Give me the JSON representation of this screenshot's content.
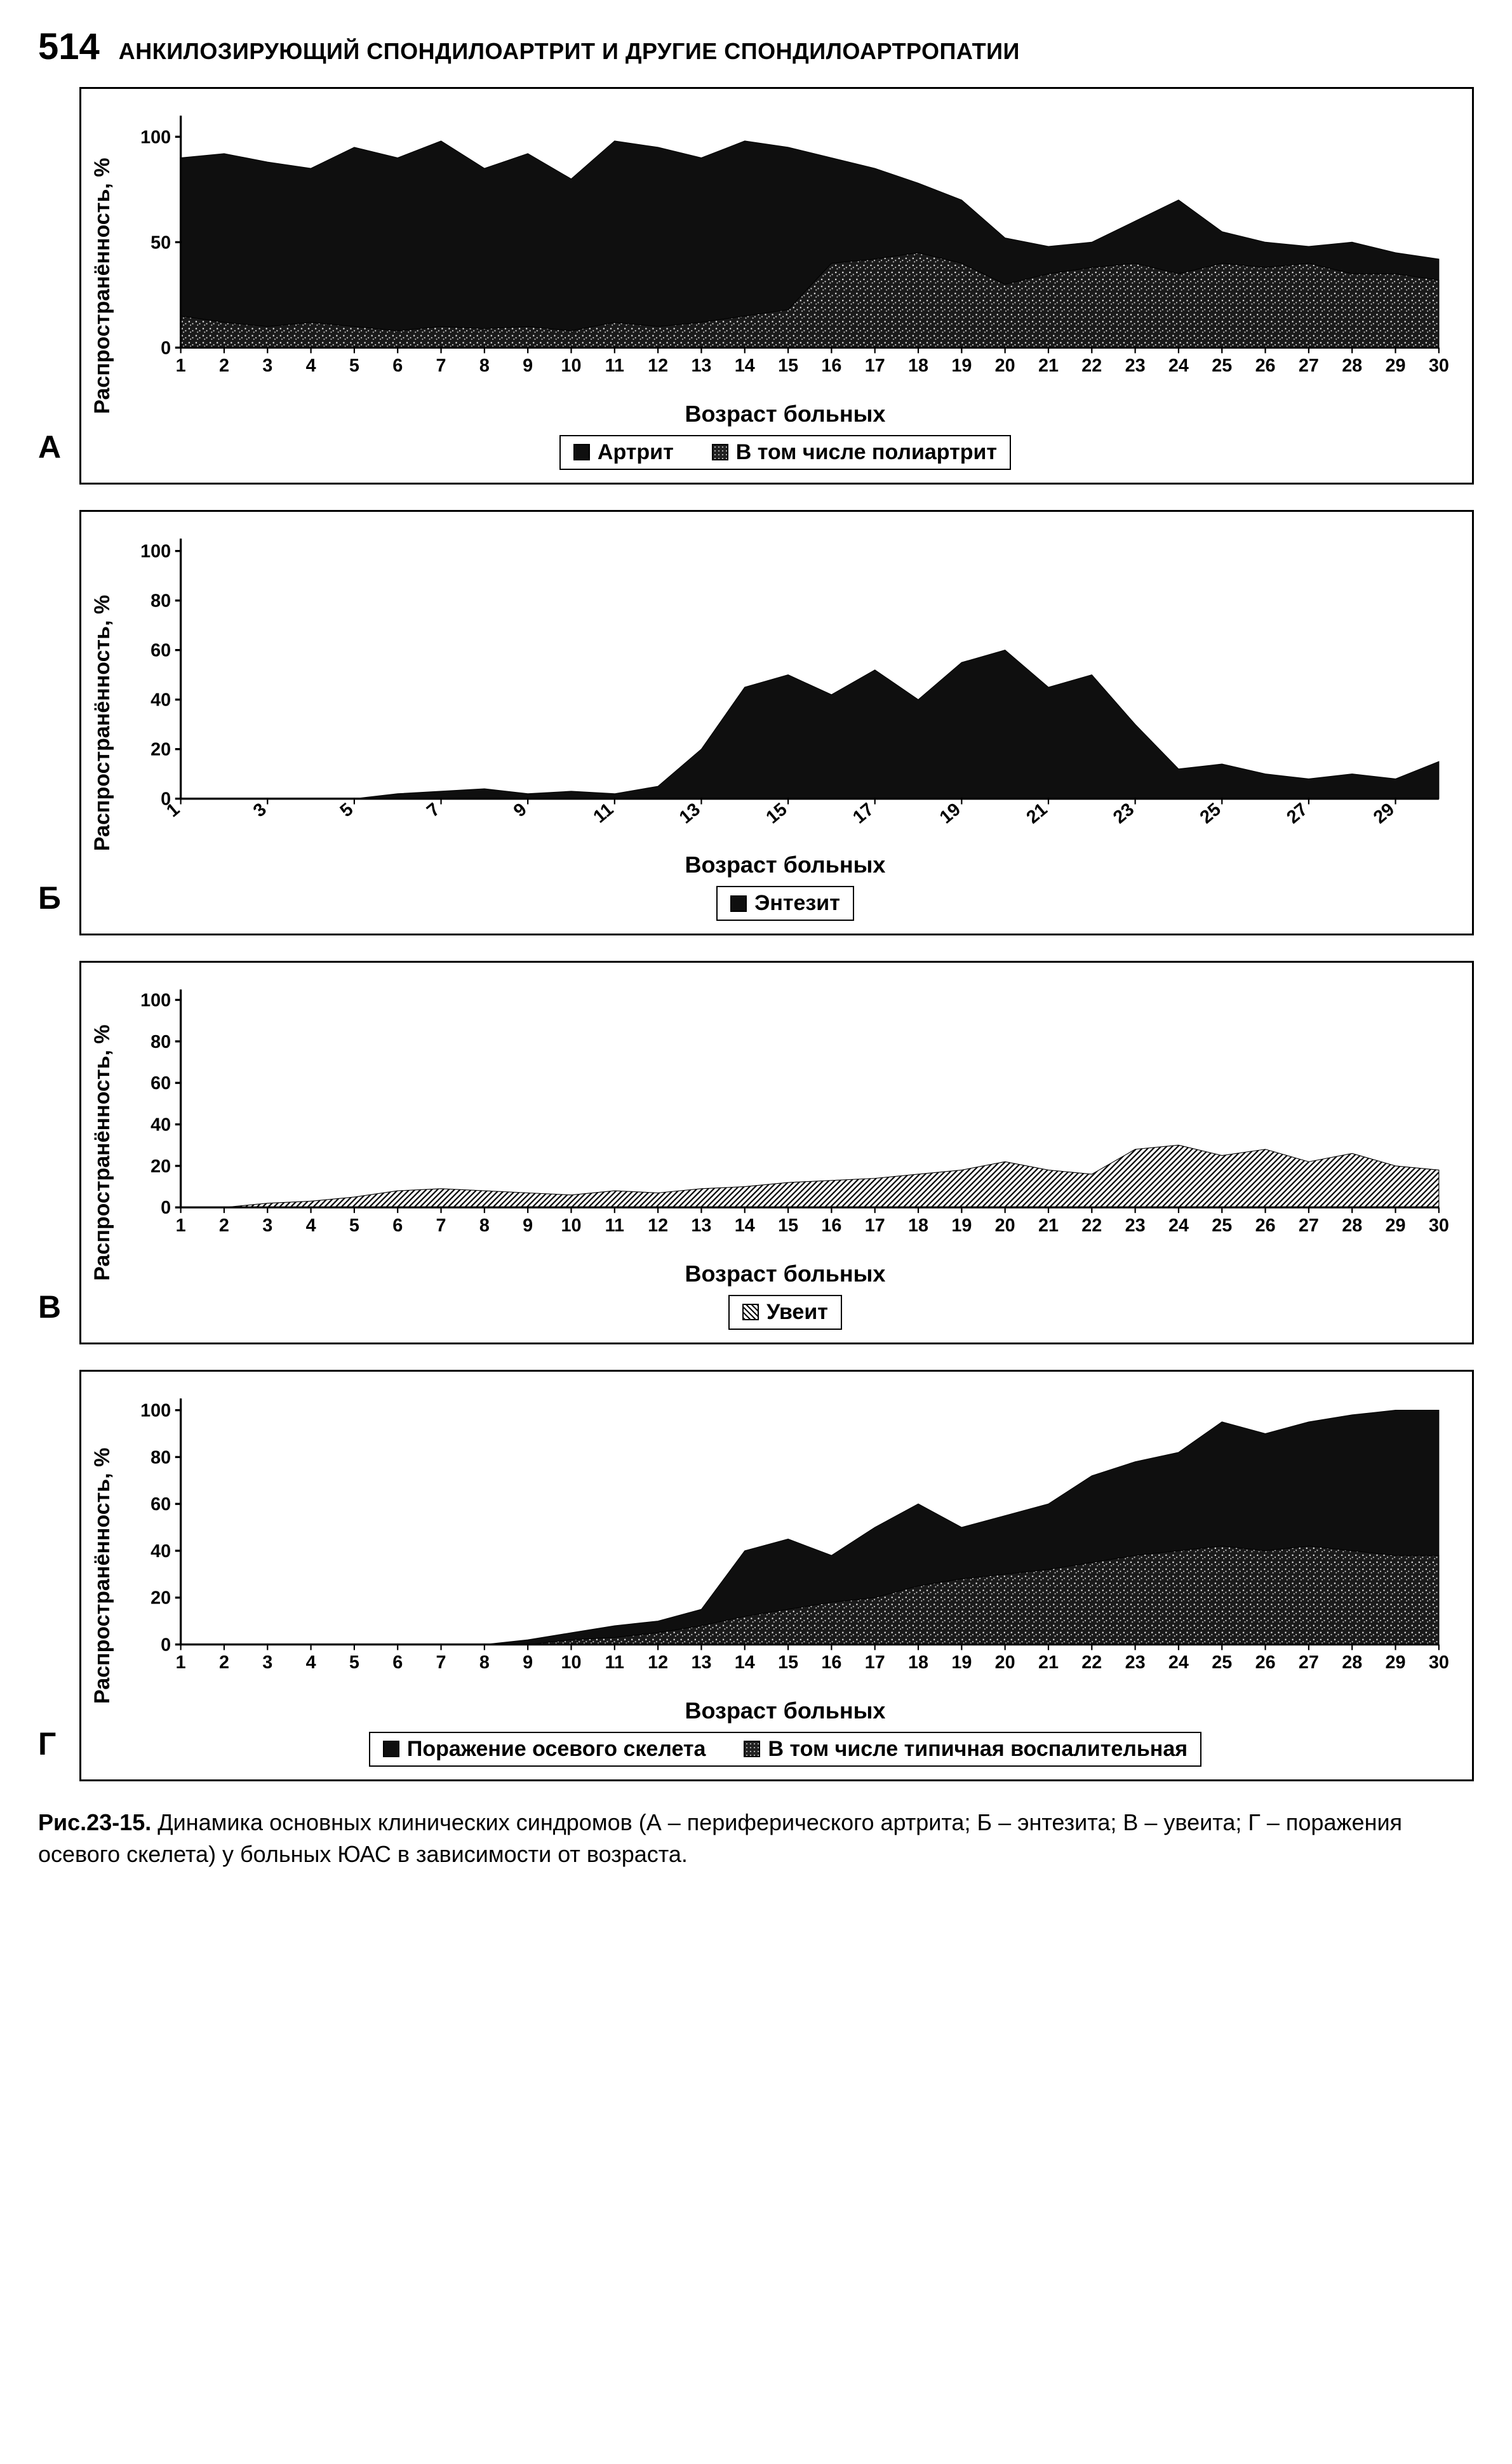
{
  "page_number": "514",
  "header_title": "АНКИЛОЗИРУЮЩИЙ СПОНДИЛОАРТРИТ И ДРУГИЕ СПОНДИЛОАРТРОПАТИИ",
  "yaxis_label": "Распространённость, %",
  "xaxis_label": "Возраст больных",
  "colors": {
    "border": "#000000",
    "bg": "#ffffff",
    "solid_fill": "#0f0f0f",
    "speckle_fill": "#3a3a3a",
    "hatch_fill": "#555555"
  },
  "chartA": {
    "label": "А",
    "type": "area",
    "x": [
      1,
      2,
      3,
      4,
      5,
      6,
      7,
      8,
      9,
      10,
      11,
      12,
      13,
      14,
      15,
      16,
      17,
      18,
      19,
      20,
      21,
      22,
      23,
      24,
      25,
      26,
      27,
      28,
      29,
      30
    ],
    "ylim": [
      0,
      110
    ],
    "yticks": [
      0,
      50,
      100
    ],
    "series": [
      {
        "name": "Артрит",
        "swatch": "solid",
        "values": [
          90,
          92,
          88,
          85,
          95,
          90,
          98,
          85,
          92,
          80,
          98,
          95,
          90,
          98,
          95,
          90,
          85,
          78,
          70,
          52,
          48,
          50,
          60,
          70,
          55,
          50,
          48,
          50,
          45,
          42
        ]
      },
      {
        "name": "В том числе полиартрит",
        "swatch": "speckle",
        "values": [
          15,
          12,
          10,
          12,
          10,
          8,
          10,
          9,
          10,
          8,
          12,
          10,
          12,
          15,
          18,
          40,
          42,
          45,
          40,
          30,
          35,
          38,
          40,
          35,
          40,
          38,
          40,
          35,
          35,
          32
        ]
      }
    ],
    "legend": [
      "Артрит",
      "В том числе полиартрит"
    ],
    "rotate_xticks": false
  },
  "chartB": {
    "label": "Б",
    "type": "area",
    "x": [
      1,
      3,
      5,
      7,
      9,
      11,
      13,
      15,
      17,
      19,
      21,
      23,
      25,
      27,
      29
    ],
    "x_all": [
      1,
      2,
      3,
      4,
      5,
      6,
      7,
      8,
      9,
      10,
      11,
      12,
      13,
      14,
      15,
      16,
      17,
      18,
      19,
      20,
      21,
      22,
      23,
      24,
      25,
      26,
      27,
      28,
      29,
      30
    ],
    "ylim": [
      0,
      105
    ],
    "yticks": [
      0,
      20,
      40,
      60,
      80,
      100
    ],
    "series": [
      {
        "name": "Энтезит",
        "swatch": "solid",
        "values": [
          0,
          0,
          0,
          0,
          0,
          2,
          3,
          4,
          2,
          3,
          2,
          5,
          20,
          45,
          50,
          42,
          52,
          40,
          55,
          60,
          45,
          50,
          30,
          12,
          14,
          10,
          8,
          10,
          8,
          15
        ]
      }
    ],
    "legend": [
      "Энтезит"
    ],
    "rotate_xticks": true
  },
  "chartC": {
    "label": "В",
    "type": "area",
    "x": [
      1,
      2,
      3,
      4,
      5,
      6,
      7,
      8,
      9,
      10,
      11,
      12,
      13,
      14,
      15,
      16,
      17,
      18,
      19,
      20,
      21,
      22,
      23,
      24,
      25,
      26,
      27,
      28,
      29,
      30
    ],
    "ylim": [
      0,
      105
    ],
    "yticks": [
      0,
      20,
      40,
      60,
      80,
      100
    ],
    "series": [
      {
        "name": "Увеит",
        "swatch": "hatch",
        "values": [
          0,
          0,
          2,
          3,
          5,
          8,
          9,
          8,
          7,
          6,
          8,
          7,
          9,
          10,
          12,
          13,
          14,
          16,
          18,
          22,
          18,
          16,
          28,
          30,
          25,
          28,
          22,
          26,
          20,
          18
        ]
      }
    ],
    "legend": [
      "Увеит"
    ],
    "rotate_xticks": false
  },
  "chartD": {
    "label": "Г",
    "type": "area",
    "x": [
      1,
      2,
      3,
      4,
      5,
      6,
      7,
      8,
      9,
      10,
      11,
      12,
      13,
      14,
      15,
      16,
      17,
      18,
      19,
      20,
      21,
      22,
      23,
      24,
      25,
      26,
      27,
      28,
      29,
      30
    ],
    "ylim": [
      0,
      105
    ],
    "yticks": [
      0,
      20,
      40,
      60,
      80,
      100
    ],
    "series": [
      {
        "name": "Поражение осевого скелета",
        "swatch": "solid",
        "values": [
          0,
          0,
          0,
          0,
          0,
          0,
          0,
          0,
          2,
          5,
          8,
          10,
          15,
          40,
          45,
          38,
          50,
          60,
          50,
          55,
          60,
          72,
          78,
          82,
          95,
          90,
          95,
          98,
          100,
          100
        ]
      },
      {
        "name": "В том числе типичная воспалительная",
        "swatch": "speckle",
        "values": [
          0,
          0,
          0,
          0,
          0,
          0,
          0,
          0,
          0,
          2,
          3,
          5,
          8,
          12,
          15,
          18,
          20,
          25,
          28,
          30,
          32,
          35,
          38,
          40,
          42,
          40,
          42,
          40,
          38,
          38
        ]
      }
    ],
    "legend": [
      "Поражение осевого скелета",
      "В том числе типичная воспалительная"
    ],
    "rotate_xticks": false
  },
  "caption_lead": "Рис.23-15.",
  "caption_body": " Динамика основных клинических синдромов (А – периферического артрита; Б – энтезита; В – увеита; Г – поражения осевого скелета) у больных ЮАС в зависимости от возраста."
}
